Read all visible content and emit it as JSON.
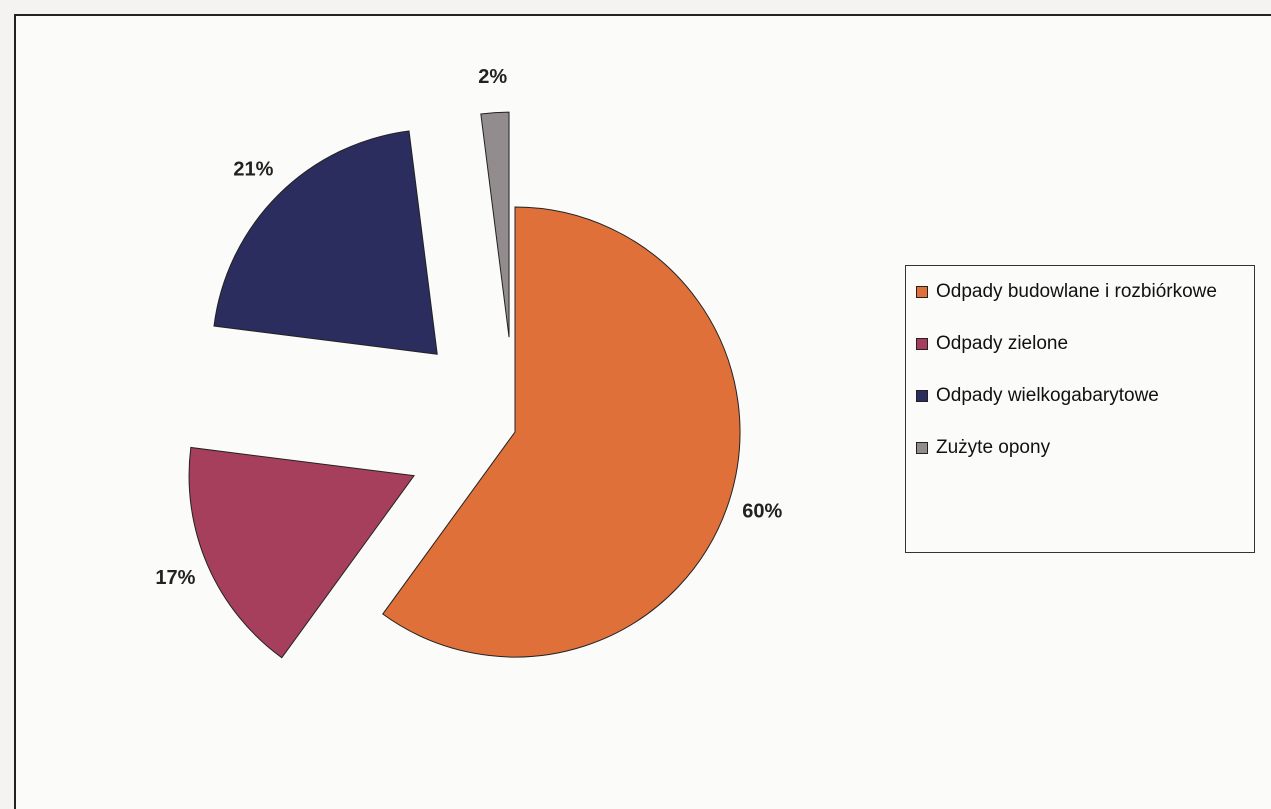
{
  "chart_data": {
    "type": "pie",
    "categories": [
      "Odpady budowlane i rozbiórkowe",
      "Odpady zielone",
      "Odpady wielkogabarytowe",
      "Zużyte opony"
    ],
    "values": [
      60,
      17,
      21,
      2
    ],
    "value_labels": [
      "60%",
      "17%",
      "21%",
      "2%"
    ],
    "colors": [
      "#e0703a",
      "#a63f5c",
      "#2b2d5e",
      "#938c8e"
    ],
    "legend": "right"
  }
}
